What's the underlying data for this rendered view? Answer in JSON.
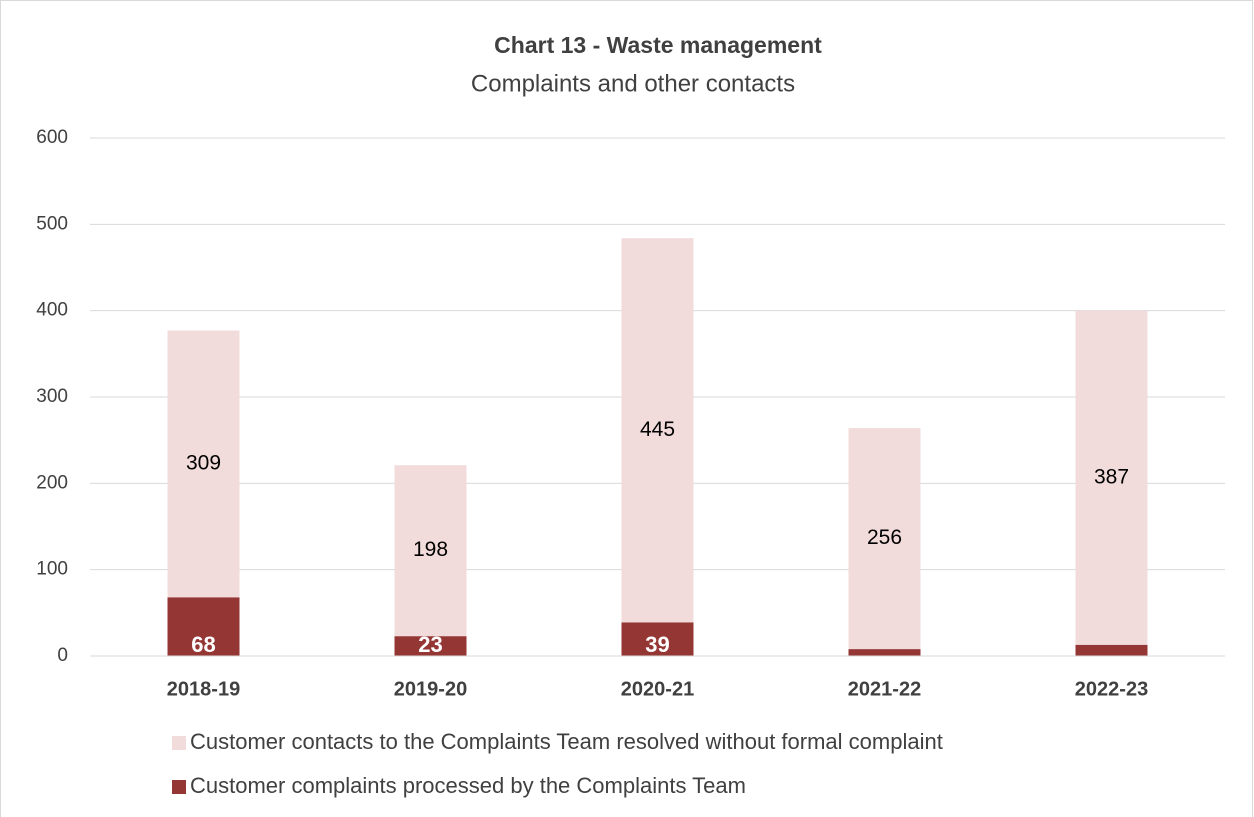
{
  "chart_data": {
    "type": "stacked_bar",
    "title": "Chart 13 - Waste management",
    "subtitle": "Complaints and other contacts",
    "categories": [
      "2018-19",
      "2019-20",
      "2020-21",
      "2021-22",
      "2022-23"
    ],
    "series": [
      {
        "name": "Customer complaints processed by the Complaints Team",
        "color": "#943634",
        "values": [
          68,
          23,
          39,
          8,
          13
        ]
      },
      {
        "name": "Customer contacts to the Complaints Team resolved without formal complaint",
        "color": "#f2dcdb",
        "values": [
          309,
          198,
          445,
          256,
          387
        ]
      }
    ],
    "ylim": [
      0,
      600
    ],
    "yticks": [
      0,
      100,
      200,
      300,
      400,
      500,
      600
    ],
    "grid": true
  }
}
